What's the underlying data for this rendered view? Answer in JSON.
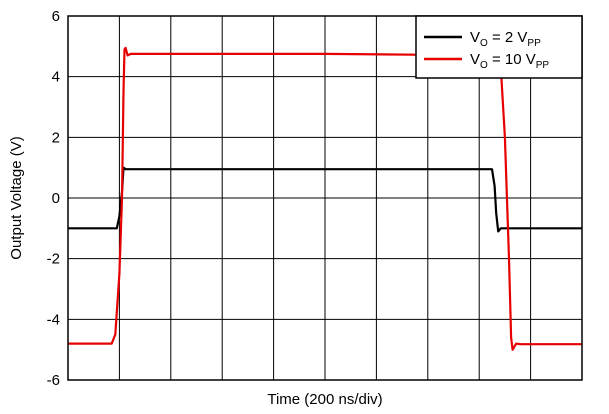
{
  "chart_data": {
    "type": "line",
    "title": "",
    "xlabel": "Time (200 ns/div)",
    "ylabel": "Output Voltage (V)",
    "ylim": [
      -6,
      6
    ],
    "xlim": [
      0,
      10
    ],
    "yticks": [
      -6,
      -4,
      -2,
      0,
      2,
      4,
      6
    ],
    "ytick_labels": [
      "-6",
      "-4",
      "-2",
      "0",
      "2",
      "4",
      "6"
    ],
    "x_gridlines": [
      1,
      2,
      3,
      4,
      5,
      6,
      7,
      8,
      9
    ],
    "grid": true,
    "legend_position": "top-right",
    "series": [
      {
        "name_main": "V",
        "name_sub": "O",
        "name_mid": " = 2 V",
        "name_sub2": "PP",
        "color": "#000000",
        "x": [
          0,
          0.95,
          1.0,
          1.05,
          1.08,
          1.12,
          3.0,
          5.0,
          7.0,
          8.25,
          8.3,
          8.33,
          8.37,
          8.42,
          8.5,
          10
        ],
        "y": [
          -1.0,
          -1.0,
          -0.6,
          0.2,
          1.0,
          0.95,
          0.95,
          0.95,
          0.95,
          0.95,
          0.4,
          -0.5,
          -1.1,
          -1.0,
          -1.0,
          -1.0
        ]
      },
      {
        "name_main": "V",
        "name_sub": "O",
        "name_mid": " = 10 V",
        "name_sub2": "PP",
        "color": "#e60000",
        "x": [
          0,
          0.85,
          0.92,
          1.0,
          1.05,
          1.08,
          1.1,
          1.12,
          1.16,
          1.22,
          3.0,
          5.0,
          7.0,
          8.35,
          8.42,
          8.5,
          8.58,
          8.62,
          8.65,
          8.72,
          8.8,
          10
        ],
        "y": [
          -4.8,
          -4.8,
          -4.5,
          -2.5,
          0.0,
          3.5,
          4.9,
          4.95,
          4.7,
          4.75,
          4.75,
          4.75,
          4.72,
          4.72,
          4.3,
          2.0,
          -2.0,
          -4.6,
          -5.0,
          -4.8,
          -4.82,
          -4.82
        ]
      }
    ]
  }
}
